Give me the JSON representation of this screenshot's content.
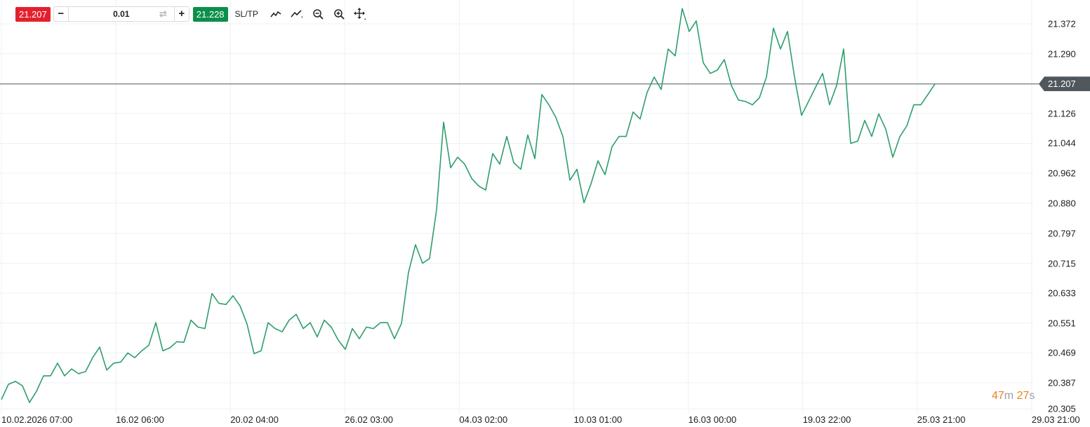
{
  "toolbar": {
    "sell_price": "21.207",
    "buy_price": "21.228",
    "quantity": "0.01",
    "minus_label": "−",
    "plus_label": "+",
    "sltp_label": "SL/TP",
    "icons": [
      "line-chart-icon",
      "line-chart-type-icon",
      "zoom-out-icon",
      "zoom-in-icon",
      "move-icon"
    ],
    "colors": {
      "sell": "#e5202e",
      "buy": "#0c8f4a"
    }
  },
  "timer": {
    "minutes": "47",
    "minutes_unit": "m",
    "seconds": "27",
    "seconds_unit": "s"
  },
  "current_price": {
    "label": "21.207",
    "value": 21.207
  },
  "chart_data": {
    "type": "line",
    "line_color": "#2e9e6b",
    "grid": true,
    "y_ticks": [
      "21.372",
      "21.290",
      "21.207",
      "21.126",
      "21.044",
      "20.962",
      "20.880",
      "20.797",
      "20.715",
      "20.633",
      "20.551",
      "20.469",
      "20.387",
      "20.305"
    ],
    "x_ticks": [
      "10.02.2026 07:00",
      "16.02 06:00",
      "20.02 04:00",
      "26.02 03:00",
      "04.03 02:00",
      "10.03 01:00",
      "16.03 00:00",
      "19.03 22:00",
      "25.03 21:00",
      "29.03 21:00"
    ],
    "ylim": [
      20.305,
      21.372
    ],
    "values": [
      20.341,
      20.383,
      20.391,
      20.379,
      20.333,
      20.364,
      20.406,
      20.406,
      20.441,
      20.406,
      20.425,
      20.412,
      20.418,
      20.456,
      20.485,
      20.422,
      20.441,
      20.444,
      20.469,
      20.456,
      20.475,
      20.49,
      20.552,
      20.475,
      20.483,
      20.5,
      20.498,
      20.559,
      20.54,
      20.536,
      20.632,
      20.605,
      20.602,
      20.626,
      20.598,
      20.548,
      20.467,
      20.475,
      20.552,
      20.536,
      20.527,
      20.559,
      20.575,
      20.536,
      20.552,
      20.513,
      20.559,
      20.54,
      20.504,
      20.479,
      20.536,
      20.508,
      20.54,
      20.536,
      20.552,
      20.552,
      20.508,
      20.55,
      20.69,
      20.766,
      20.715,
      20.728,
      20.862,
      21.102,
      20.977,
      21.006,
      20.987,
      20.948,
      20.927,
      20.916,
      21.016,
      20.987,
      21.063,
      20.991,
      20.973,
      21.067,
      21.002,
      21.178,
      21.15,
      21.115,
      21.063,
      20.943,
      20.973,
      20.881,
      20.933,
      20.996,
      20.958,
      21.035,
      21.063,
      21.063,
      21.13,
      21.111,
      21.184,
      21.226,
      21.192,
      21.303,
      21.284,
      21.414,
      21.351,
      21.38,
      21.265,
      21.236,
      21.245,
      21.274,
      21.203,
      21.163,
      21.159,
      21.15,
      21.169,
      21.226,
      21.36,
      21.303,
      21.351,
      21.226,
      21.121,
      21.159,
      21.198,
      21.236,
      21.15,
      21.203,
      21.303,
      21.044,
      21.05,
      21.107,
      21.063,
      21.125,
      21.083,
      21.006,
      21.062,
      21.092,
      21.15,
      21.15,
      21.178,
      21.207
    ]
  }
}
